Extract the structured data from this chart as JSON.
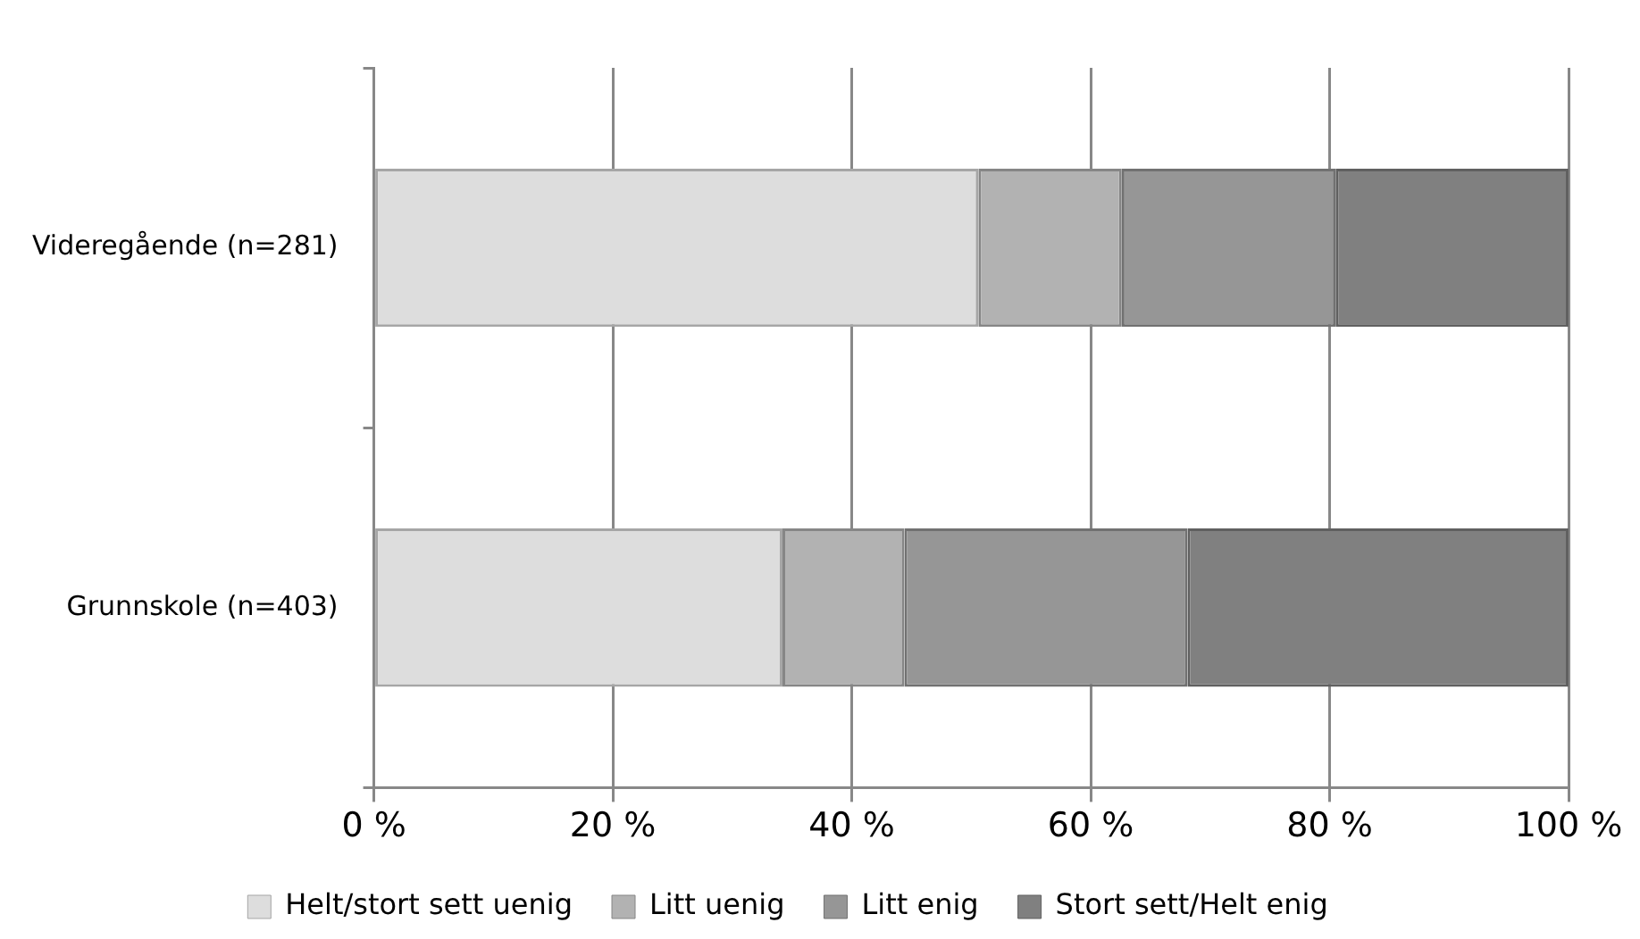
{
  "chart_data": {
    "type": "bar",
    "orientation": "horizontal",
    "stacked": true,
    "categories": [
      "Videregående (n=281)",
      "Grunnskole (n=403)"
    ],
    "series": [
      {
        "name": "Helt/stort sett uenig",
        "color": "#dddddd",
        "values": [
          50.6,
          34.2
        ]
      },
      {
        "name": "Litt uenig",
        "color": "#b2b2b2",
        "values": [
          12.0,
          10.2
        ]
      },
      {
        "name": "Litt enig",
        "color": "#969696",
        "values": [
          17.9,
          23.7
        ]
      },
      {
        "name": "Stort sett/Helt enig",
        "color": "#808080",
        "values": [
          19.5,
          31.9
        ]
      }
    ],
    "xlim": [
      0,
      100
    ],
    "xticks": [
      {
        "value": 0,
        "label": "0 %"
      },
      {
        "value": 20,
        "label": "20 %"
      },
      {
        "value": 40,
        "label": "40 %"
      },
      {
        "value": 60,
        "label": "60 %"
      },
      {
        "value": 80,
        "label": "80 %"
      },
      {
        "value": 100,
        "label": "100 %"
      }
    ],
    "grid": "x",
    "legend": "bottom"
  }
}
